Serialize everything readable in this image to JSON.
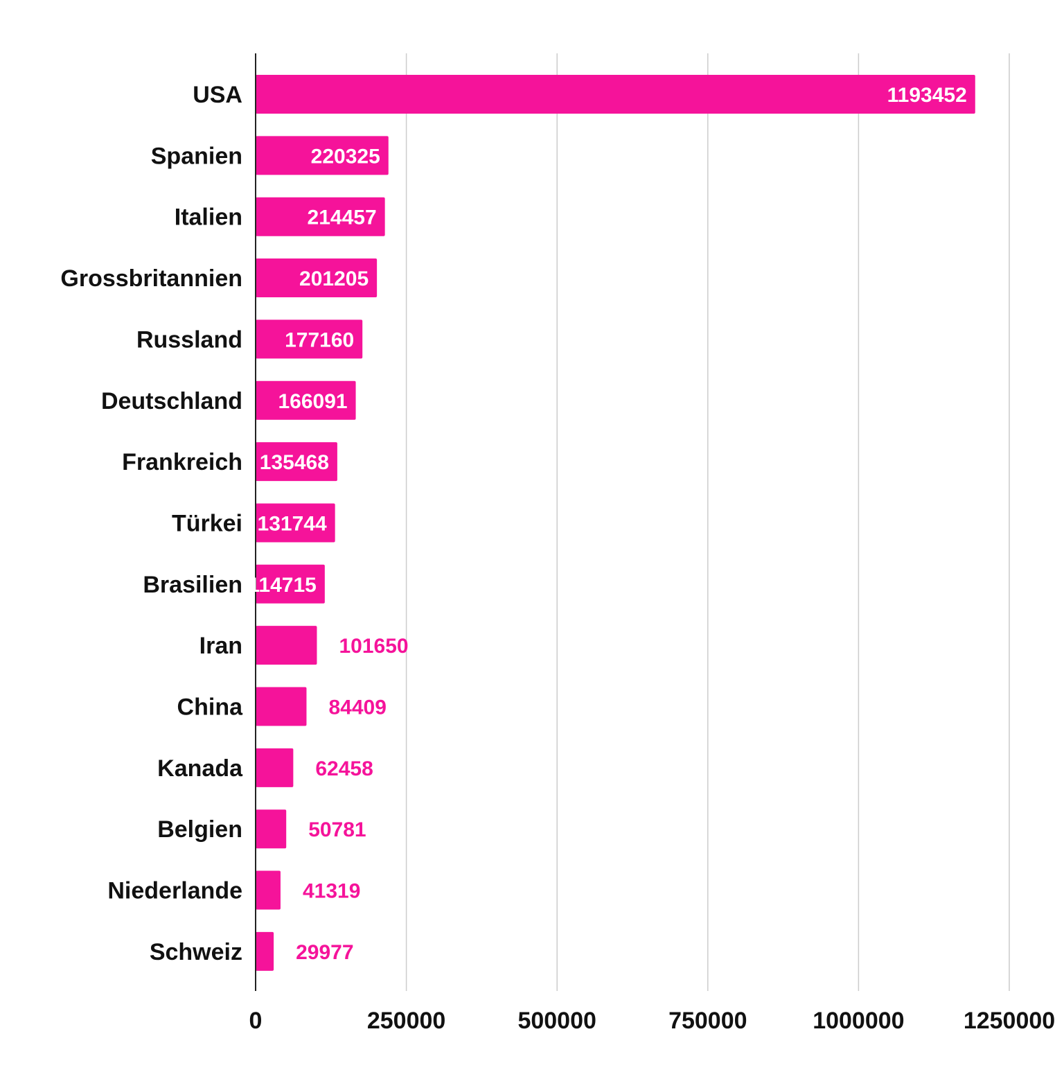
{
  "colors": {
    "bar": "#f5139a",
    "label_inside": "#ffffff",
    "label_outside": "#f5139a",
    "gridline": "#cccccc",
    "axis": "#222222",
    "text": "#111111"
  },
  "chart_data": {
    "type": "bar",
    "orientation": "horizontal",
    "title": "",
    "xlabel": "",
    "ylabel": "",
    "xlim": [
      0,
      1250000
    ],
    "x_ticks": [
      0,
      250000,
      500000,
      750000,
      1000000,
      1250000
    ],
    "x_tick_labels": [
      "0",
      "250000",
      "500000",
      "750000",
      "1000000",
      "1250000"
    ],
    "grid": true,
    "legend": "none",
    "categories": [
      "USA",
      "Spanien",
      "Italien",
      "Grossbritannien",
      "Russland",
      "Deutschland",
      "Frankreich",
      "Türkei",
      "Brasilien",
      "Iran",
      "China",
      "Kanada",
      "Belgien",
      "Niederlande",
      "Schweiz"
    ],
    "values": [
      1193452,
      220325,
      214457,
      201205,
      177160,
      166091,
      135468,
      131744,
      114715,
      101650,
      84409,
      62458,
      50781,
      41319,
      29977
    ],
    "value_labels": [
      "1193452",
      "220325",
      "214457",
      "201205",
      "177160",
      "166091",
      "135468",
      "131744",
      "114715",
      "101650",
      "84409",
      "62458",
      "50781",
      "41319",
      "29977"
    ]
  }
}
